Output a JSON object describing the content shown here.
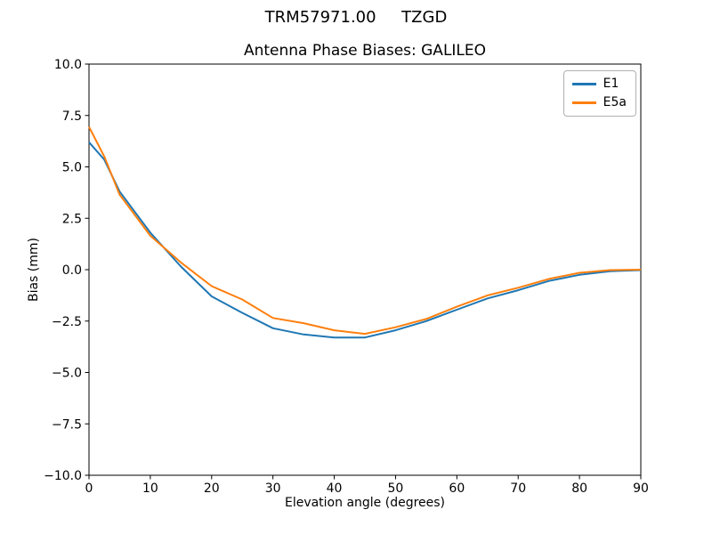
{
  "chart_data": {
    "type": "line",
    "suptitle": "TRM57971.00     TZGD",
    "title": "Antenna Phase Biases: GALILEO",
    "xlabel": "Elevation angle (degrees)",
    "ylabel": "Bias (mm)",
    "xlim": [
      0,
      90
    ],
    "ylim": [
      -10,
      10
    ],
    "grid": false,
    "legend_position": "upper right",
    "background": "#ffffff",
    "axes_color": "#000000",
    "xticks": [
      0,
      10,
      20,
      30,
      40,
      50,
      60,
      70,
      80,
      90
    ],
    "xtick_labels": [
      "0",
      "10",
      "20",
      "30",
      "40",
      "50",
      "60",
      "70",
      "80",
      "90"
    ],
    "yticks": [
      10.0,
      7.5,
      5.0,
      2.5,
      0.0,
      -2.5,
      -5.0,
      -7.5,
      -10.0
    ],
    "ytick_labels": [
      "10.0",
      "7.5",
      "5.0",
      "2.5",
      "0.0",
      "−2.5",
      "−5.0",
      "−7.5",
      "−10.0"
    ],
    "x": [
      0,
      2.5,
      5,
      10,
      15,
      20,
      25,
      30,
      35,
      40,
      45,
      50,
      55,
      60,
      65,
      70,
      75,
      80,
      85,
      90
    ],
    "series": [
      {
        "name": "E1",
        "color": "#1f77b4",
        "values": [
          6.2,
          5.35,
          3.8,
          1.8,
          0.15,
          -1.3,
          -2.1,
          -2.85,
          -3.15,
          -3.3,
          -3.3,
          -2.95,
          -2.5,
          -1.95,
          -1.4,
          -1.0,
          -0.55,
          -0.25,
          -0.08,
          -0.02
        ]
      },
      {
        "name": "E5a",
        "color": "#ff7f0e",
        "values": [
          6.95,
          5.5,
          3.65,
          1.65,
          0.35,
          -0.8,
          -1.45,
          -2.35,
          -2.6,
          -2.95,
          -3.12,
          -2.8,
          -2.4,
          -1.8,
          -1.25,
          -0.88,
          -0.45,
          -0.15,
          -0.02,
          0.0
        ]
      }
    ]
  }
}
